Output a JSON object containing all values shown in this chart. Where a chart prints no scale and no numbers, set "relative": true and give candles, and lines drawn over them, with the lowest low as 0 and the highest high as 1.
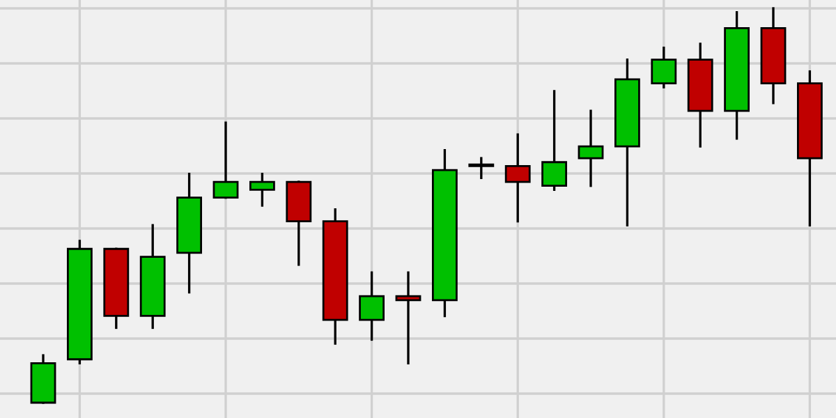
{
  "chart_data": {
    "type": "candlestick",
    "relative": true,
    "grid": true,
    "categories": [
      null,
      null,
      null,
      null,
      null,
      null,
      null,
      null,
      null,
      null,
      null,
      null,
      null,
      null,
      null,
      null,
      null,
      null,
      null,
      null,
      null,
      null
    ],
    "ohlc": [
      [
        0.0,
        0.12,
        0.0,
        0.1
      ],
      [
        0.11,
        0.41,
        0.1,
        0.39
      ],
      [
        0.39,
        0.39,
        0.19,
        0.22
      ],
      [
        0.22,
        0.45,
        0.19,
        0.37
      ],
      [
        0.38,
        0.58,
        0.28,
        0.52
      ],
      [
        0.52,
        0.71,
        0.52,
        0.56
      ],
      [
        0.54,
        0.58,
        0.5,
        0.56
      ],
      [
        0.56,
        0.56,
        0.35,
        0.46
      ],
      [
        0.46,
        0.49,
        0.15,
        0.21
      ],
      [
        0.21,
        0.33,
        0.16,
        0.27
      ],
      [
        0.27,
        0.33,
        0.1,
        0.26
      ],
      [
        0.26,
        0.64,
        0.22,
        0.59
      ],
      [
        0.6,
        0.62,
        0.57,
        0.6
      ],
      [
        0.6,
        0.68,
        0.46,
        0.56
      ],
      [
        0.55,
        0.79,
        0.54,
        0.61
      ],
      [
        0.62,
        0.74,
        0.55,
        0.65
      ],
      [
        0.65,
        0.87,
        0.45,
        0.82
      ],
      [
        0.81,
        0.9,
        0.8,
        0.87
      ],
      [
        0.87,
        0.91,
        0.65,
        0.74
      ],
      [
        0.74,
        0.99,
        0.67,
        0.95
      ],
      [
        0.95,
        1.0,
        0.76,
        0.81
      ],
      [
        0.81,
        0.84,
        0.45,
        0.62
      ]
    ],
    "colors": [
      "#00c000",
      "#00c000",
      "#c00000",
      "#00c000",
      "#00c000",
      "#00c000",
      "#00c000",
      "#c00000",
      "#c00000",
      "#00c000",
      "#c00000",
      "#00c000",
      "#c00000",
      "#c00000",
      "#00c000",
      "#00c000",
      "#00c000",
      "#00c000",
      "#c00000",
      "#00c000",
      "#c00000",
      "#c00000"
    ]
  }
}
